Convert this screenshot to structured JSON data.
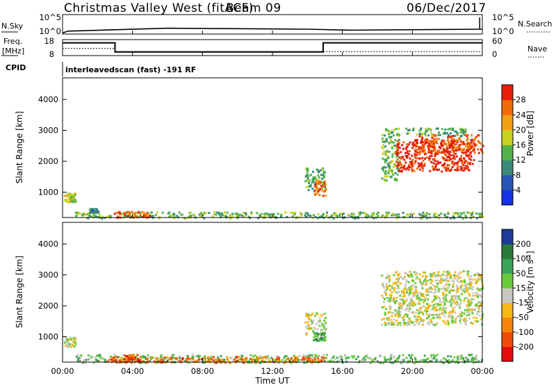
{
  "header": {
    "site": "Christmas Valley West (fitACF)",
    "beam": "Beam 09",
    "date": "06/Dec/2017"
  },
  "panel_labels": {
    "nsky": "N.Sky",
    "nsearch": "N.Search",
    "freq": "Freq.",
    "freq_unit": "[MHz]",
    "nave": "Nave",
    "cpid": "CPID",
    "cpid_value": "interleavedscan (fast) -191 RF"
  },
  "noise_axis": {
    "left": [
      "10^5",
      "10^0"
    ],
    "right": [
      "10^5",
      "10^0"
    ]
  },
  "freq_axis": {
    "left": [
      "18",
      "8"
    ],
    "right": [
      "60",
      "0"
    ]
  },
  "chart_data": [
    {
      "type": "line",
      "title": "",
      "series": [
        {
          "name": "N.Sky",
          "x": [
            0.0,
            0.3,
            6.0,
            14.0,
            16.5,
            24.0
          ],
          "y": [
            0.05,
            0.15,
            0.3,
            0.25,
            0.2,
            0.25
          ]
        },
        {
          "name": "N.Search",
          "x": [
            0.0,
            24.0
          ],
          "y": [
            0.0,
            0.0
          ]
        }
      ],
      "xlim": [
        0,
        24
      ]
    },
    {
      "type": "line",
      "title": "",
      "series": [
        {
          "name": "Freq.",
          "x": [
            0.0,
            3.0,
            3.0,
            14.9,
            14.9,
            24.0
          ],
          "y": [
            16.0,
            16.0,
            10.3,
            10.3,
            16.0,
            16.0
          ]
        },
        {
          "name": "Nave",
          "x": [
            0.0,
            3.0,
            3.0,
            24.0
          ],
          "y": [
            27.0,
            27.0,
            15.0,
            15.0
          ]
        }
      ],
      "ylim_left": [
        8,
        18
      ],
      "ylim_right": [
        0,
        60
      ]
    },
    {
      "type": "heatmap",
      "title": "",
      "xlabel": "",
      "ylabel": "Slant Range [km]",
      "colorbar_label": "Power [dB]",
      "colorbar_ticks": [
        "4",
        "8",
        "12",
        "16",
        "20",
        "24",
        "28"
      ],
      "colorbar_colors": [
        "#1432e6",
        "#2a55b8",
        "#3a8a7a",
        "#52b24a",
        "#c8d21e",
        "#f2a014",
        "#f06a0a",
        "#e61e0a"
      ],
      "xlim": [
        0,
        24
      ],
      "ylim": [
        180,
        4700
      ],
      "yticks": [
        "1000",
        "2000",
        "3000",
        "4000"
      ],
      "regions": [
        {
          "x0": 0.05,
          "x1": 0.7,
          "y0": 700,
          "y1": 1000,
          "v": 0.55
        },
        {
          "x0": 0.7,
          "x1": 24.0,
          "y0": 180,
          "y1": 380,
          "v": 0.45
        },
        {
          "x0": 2.8,
          "x1": 5.0,
          "y0": 200,
          "y1": 400,
          "v": 0.85
        },
        {
          "x0": 1.5,
          "x1": 2.0,
          "y0": 350,
          "y1": 500,
          "v": 0.3
        },
        {
          "x0": 13.8,
          "x1": 15.0,
          "y0": 1100,
          "y1": 1800,
          "v": 0.4
        },
        {
          "x0": 14.3,
          "x1": 15.0,
          "y0": 900,
          "y1": 1400,
          "v": 0.8
        },
        {
          "x0": 18.2,
          "x1": 19.2,
          "y0": 1400,
          "y1": 3100,
          "v": 0.45
        },
        {
          "x0": 19.0,
          "x1": 23.5,
          "y0": 1700,
          "y1": 2700,
          "v": 0.95
        },
        {
          "x0": 20.0,
          "x1": 24.0,
          "y0": 2300,
          "y1": 2900,
          "v": 0.85
        },
        {
          "x0": 19.5,
          "x1": 23.0,
          "y0": 2850,
          "y1": 3100,
          "v": 0.4
        }
      ]
    },
    {
      "type": "heatmap",
      "title": "",
      "xlabel": "Time UT",
      "ylabel": "Slant Range [km]",
      "colorbar_label": "Velocity [m s^-1]",
      "colorbar_ticks": [
        "-200",
        "-100",
        "-50",
        "-15",
        "15",
        "50",
        "100",
        "200"
      ],
      "colorbar_colors": [
        "#e60a0a",
        "#f04a0a",
        "#f7840a",
        "#f5b814",
        "#c8c8c0",
        "#6acb3a",
        "#3aa55a",
        "#2a7a3a",
        "#1e3a9a"
      ],
      "xlim": [
        0,
        24
      ],
      "ylim": [
        180,
        4700
      ],
      "yticks": [
        "1000",
        "2000",
        "3000",
        "4000"
      ],
      "xticks": [
        "00:00",
        "04:00",
        "08:00",
        "12:00",
        "16:00",
        "20:00",
        "00:00"
      ],
      "regions": [
        {
          "x0": 0.05,
          "x1": 0.7,
          "y0": 700,
          "y1": 1000,
          "v": 0.5
        },
        {
          "x0": 0.7,
          "x1": 24.0,
          "y0": 180,
          "y1": 450,
          "v": 0.62
        },
        {
          "x0": 2.5,
          "x1": 15.0,
          "y0": 180,
          "y1": 380,
          "v": 0.25
        },
        {
          "x0": 3.5,
          "x1": 4.3,
          "y0": 200,
          "y1": 450,
          "v": 0.2
        },
        {
          "x0": 13.8,
          "x1": 15.0,
          "y0": 1100,
          "y1": 1800,
          "v": 0.5
        },
        {
          "x0": 14.3,
          "x1": 15.0,
          "y0": 900,
          "y1": 1200,
          "v": 0.7
        },
        {
          "x0": 18.2,
          "x1": 24.0,
          "y0": 1400,
          "y1": 3150,
          "v": 0.5
        }
      ]
    }
  ]
}
